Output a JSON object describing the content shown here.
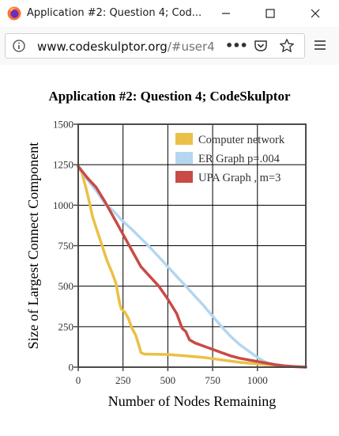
{
  "window": {
    "tab_title": "Application #2: Question 4; Cod...",
    "minimize_label": "—",
    "maximize_label": "☐",
    "close_label": "✕"
  },
  "address_bar": {
    "url_host": "www.codeskulptor.org",
    "url_path": "/#user4",
    "more_label": "•••"
  },
  "colors": {
    "computer": "#ebc046",
    "er": "#b4d6ef",
    "upa": "#c94a46",
    "grid": "#000000"
  },
  "chart_data": {
    "type": "line",
    "title": "Application #2: Question 4; CodeSkulptor",
    "xlabel": "Number of Nodes Remaining",
    "ylabel": "Size of Largest Connect Component",
    "xlim": [
      0,
      1270
    ],
    "ylim": [
      0,
      1500
    ],
    "xticks": [
      "0",
      "250",
      "500",
      "750",
      "1000"
    ],
    "yticks": [
      "0",
      "250",
      "500",
      "750",
      "1000",
      "1250",
      "1500"
    ],
    "grid": true,
    "legend_position": "top-right",
    "series": [
      {
        "name": "Computer network",
        "color_key": "computer",
        "x": [
          0,
          20,
          40,
          60,
          80,
          100,
          130,
          160,
          190,
          210,
          220,
          230,
          240,
          260,
          280,
          300,
          320,
          340,
          350,
          370,
          400,
          500,
          600,
          700,
          800,
          900,
          1000,
          1100,
          1200,
          1270
        ],
        "y": [
          1240,
          1200,
          1120,
          1030,
          930,
          860,
          760,
          660,
          580,
          520,
          460,
          400,
          360,
          340,
          300,
          240,
          200,
          130,
          90,
          80,
          80,
          78,
          70,
          60,
          45,
          30,
          20,
          12,
          5,
          0
        ]
      },
      {
        "name": "ER Graph p=.004",
        "color_key": "er",
        "x": [
          0,
          50,
          100,
          150,
          200,
          250,
          300,
          400,
          500,
          600,
          700,
          800,
          850,
          900,
          950,
          1000,
          1030,
          1060,
          1100,
          1150,
          1200,
          1270
        ],
        "y": [
          1240,
          1160,
          1090,
          1010,
          960,
          900,
          850,
          740,
          620,
          500,
          380,
          250,
          190,
          140,
          100,
          60,
          40,
          25,
          15,
          8,
          4,
          0
        ]
      },
      {
        "name": "UPA Graph , m=3",
        "color_key": "upa",
        "x": [
          0,
          50,
          100,
          150,
          200,
          250,
          300,
          350,
          400,
          450,
          500,
          550,
          580,
          600,
          620,
          650,
          700,
          750,
          800,
          850,
          900,
          950,
          1000,
          1050,
          1100,
          1150,
          1200,
          1270
        ],
        "y": [
          1240,
          1170,
          1110,
          1020,
          920,
          820,
          720,
          620,
          560,
          500,
          420,
          330,
          240,
          220,
          170,
          150,
          130,
          110,
          90,
          70,
          55,
          45,
          35,
          25,
          15,
          8,
          4,
          0
        ]
      }
    ]
  }
}
